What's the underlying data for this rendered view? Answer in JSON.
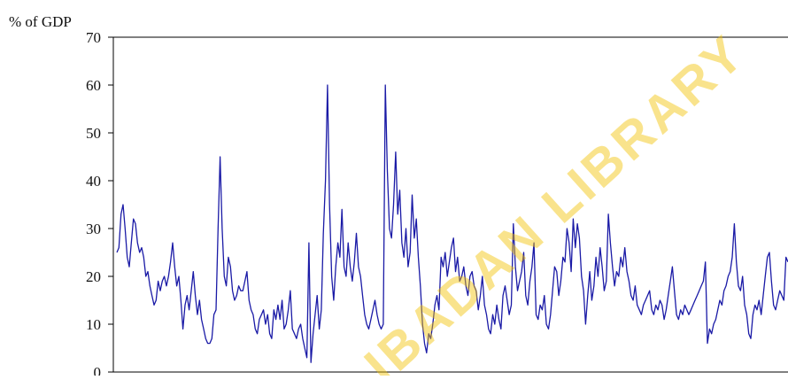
{
  "chart_data": {
    "type": "line",
    "title": "",
    "ylabel": "% of GDP",
    "xlabel": "",
    "ylim": [
      0,
      70
    ],
    "yticks": [
      "0",
      "10",
      "20",
      "30",
      "40",
      "50",
      "60",
      "70"
    ],
    "grid": false,
    "series": [
      {
        "color": "#1a1aa6",
        "values": [
          25,
          26,
          33,
          35,
          30,
          24,
          22,
          27,
          32,
          31,
          27,
          25,
          26,
          24,
          20,
          21,
          18,
          16,
          14,
          15,
          19,
          17,
          19,
          20,
          18,
          20,
          23,
          27,
          22,
          18,
          20,
          15,
          9,
          14,
          16,
          13,
          17,
          21,
          16,
          12,
          15,
          11,
          9,
          7,
          6,
          6,
          7,
          12,
          13,
          30,
          45,
          30,
          20,
          18,
          24,
          22,
          17,
          15,
          16,
          18,
          17,
          17,
          19,
          21,
          15,
          13,
          12,
          9,
          8,
          11,
          12,
          13,
          10,
          12,
          8,
          7,
          13,
          11,
          14,
          11,
          15,
          9,
          10,
          13,
          17,
          9,
          8,
          7,
          9,
          10,
          7,
          5,
          3,
          27,
          2,
          8,
          12,
          16,
          9,
          13,
          29,
          40,
          60,
          35,
          20,
          15,
          22,
          27,
          24,
          34,
          22,
          20,
          27,
          22,
          19,
          23,
          29,
          22,
          20,
          16,
          12,
          10,
          9,
          11,
          13,
          15,
          12,
          10,
          9,
          10,
          60,
          42,
          30,
          28,
          35,
          46,
          33,
          38,
          27,
          24,
          30,
          22,
          25,
          37,
          28,
          32,
          24,
          18,
          10,
          6,
          4,
          8,
          7,
          10,
          14,
          16,
          13,
          24,
          22,
          25,
          20,
          23,
          26,
          28,
          21,
          24,
          19,
          20,
          22,
          18,
          16,
          20,
          21,
          18,
          17,
          13,
          16,
          20,
          14,
          12,
          9,
          8,
          12,
          10,
          14,
          11,
          9,
          16,
          18,
          15,
          12,
          14,
          31,
          22,
          17,
          19,
          21,
          25,
          16,
          14,
          19,
          22,
          27,
          12,
          11,
          14,
          13,
          16,
          10,
          9,
          12,
          17,
          22,
          21,
          16,
          19,
          24,
          23,
          30,
          27,
          21,
          32,
          26,
          31,
          28,
          20,
          17,
          10,
          16,
          21,
          15,
          18,
          24,
          20,
          26,
          22,
          17,
          19,
          33,
          27,
          22,
          18,
          21,
          20,
          24,
          22,
          26,
          21,
          19,
          16,
          15,
          18,
          14,
          13,
          12,
          14,
          15,
          16,
          17,
          13,
          12,
          14,
          13,
          15,
          14,
          11,
          13,
          16,
          19,
          22,
          17,
          12,
          11,
          13,
          12,
          14,
          13,
          12,
          13,
          14,
          15,
          16,
          17,
          18,
          19,
          23,
          6,
          9,
          8,
          10,
          11,
          13,
          15,
          14,
          17,
          18,
          20,
          21,
          24,
          31,
          23,
          18,
          17,
          20,
          14,
          12,
          8,
          7,
          12,
          14,
          13,
          15,
          12,
          16,
          20,
          24,
          25,
          19,
          14,
          13,
          15,
          17,
          16,
          15,
          24,
          23
        ]
      }
    ],
    "watermark": "IBADAN LIBRARY"
  }
}
